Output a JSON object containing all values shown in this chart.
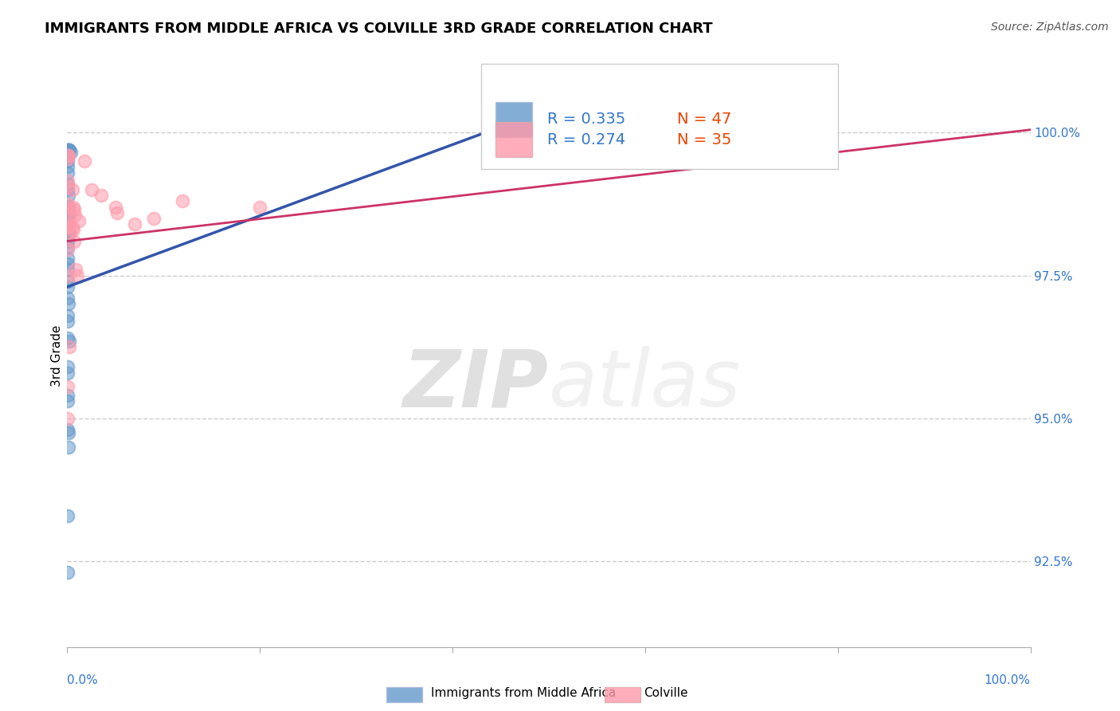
{
  "title": "IMMIGRANTS FROM MIDDLE AFRICA VS COLVILLE 3RD GRADE CORRELATION CHART",
  "source": "Source: ZipAtlas.com",
  "ylabel": "3rd Grade",
  "ylabel_right_labels": [
    "100.0%",
    "97.5%",
    "95.0%",
    "92.5%"
  ],
  "ylabel_right_values": [
    100.0,
    97.5,
    95.0,
    92.5
  ],
  "xlim": [
    0.0,
    100.0
  ],
  "ylim": [
    91.0,
    101.2
  ],
  "legend_blue_R": "R = 0.335",
  "legend_blue_N": "N = 47",
  "legend_pink_R": "R = 0.274",
  "legend_pink_N": "N = 35",
  "watermark_zip": "ZIP",
  "watermark_atlas": "atlas",
  "blue_scatter": [
    [
      0.05,
      99.7
    ],
    [
      0.05,
      99.5
    ],
    [
      0.05,
      99.4
    ],
    [
      0.05,
      99.3
    ],
    [
      0.12,
      99.7
    ],
    [
      0.12,
      99.65
    ],
    [
      0.17,
      99.7
    ],
    [
      0.22,
      99.7
    ],
    [
      0.05,
      99.1
    ],
    [
      0.07,
      99.0
    ],
    [
      0.1,
      98.9
    ],
    [
      0.05,
      98.7
    ],
    [
      0.05,
      98.6
    ],
    [
      0.05,
      98.55
    ],
    [
      0.05,
      98.5
    ],
    [
      0.07,
      98.7
    ],
    [
      0.07,
      98.65
    ],
    [
      0.08,
      98.6
    ],
    [
      0.1,
      98.7
    ],
    [
      0.1,
      98.6
    ],
    [
      0.05,
      98.3
    ],
    [
      0.05,
      98.2
    ],
    [
      0.05,
      98.1
    ],
    [
      0.05,
      98.0
    ],
    [
      0.07,
      98.25
    ],
    [
      0.08,
      98.15
    ],
    [
      0.05,
      97.8
    ],
    [
      0.05,
      97.7
    ],
    [
      0.05,
      97.6
    ],
    [
      0.05,
      97.4
    ],
    [
      0.05,
      97.3
    ],
    [
      0.05,
      97.1
    ],
    [
      0.1,
      97.0
    ],
    [
      0.05,
      96.8
    ],
    [
      0.05,
      96.7
    ],
    [
      0.05,
      96.4
    ],
    [
      0.2,
      96.35
    ],
    [
      0.05,
      95.9
    ],
    [
      0.05,
      95.8
    ],
    [
      0.05,
      95.4
    ],
    [
      0.05,
      95.3
    ],
    [
      0.05,
      94.8
    ],
    [
      0.1,
      94.75
    ],
    [
      0.1,
      94.5
    ],
    [
      0.05,
      93.3
    ],
    [
      0.4,
      99.65
    ],
    [
      0.05,
      92.3
    ]
  ],
  "pink_scatter": [
    [
      0.05,
      99.6
    ],
    [
      0.05,
      99.55
    ],
    [
      0.1,
      99.6
    ],
    [
      0.05,
      99.15
    ],
    [
      0.07,
      99.05
    ],
    [
      0.05,
      98.75
    ],
    [
      0.05,
      98.7
    ],
    [
      0.12,
      98.5
    ],
    [
      0.18,
      98.4
    ],
    [
      0.05,
      98.35
    ],
    [
      0.3,
      98.25
    ],
    [
      0.05,
      97.95
    ],
    [
      0.05,
      97.5
    ],
    [
      0.55,
      99.0
    ],
    [
      0.65,
      98.7
    ],
    [
      0.7,
      98.65
    ],
    [
      0.8,
      98.55
    ],
    [
      1.2,
      98.45
    ],
    [
      0.55,
      98.35
    ],
    [
      0.6,
      98.3
    ],
    [
      0.75,
      98.1
    ],
    [
      0.9,
      97.6
    ],
    [
      1.05,
      97.5
    ],
    [
      1.8,
      99.5
    ],
    [
      2.5,
      99.0
    ],
    [
      3.5,
      98.9
    ],
    [
      5.0,
      98.7
    ],
    [
      5.2,
      98.6
    ],
    [
      7.0,
      98.4
    ],
    [
      9.0,
      98.5
    ],
    [
      12.0,
      98.8
    ],
    [
      20.0,
      98.7
    ],
    [
      0.2,
      96.25
    ],
    [
      0.05,
      95.55
    ],
    [
      0.05,
      95.0
    ]
  ],
  "blue_line_x": [
    0.0,
    45.0
  ],
  "blue_line_y": [
    97.3,
    100.1
  ],
  "pink_line_x": [
    0.0,
    100.0
  ],
  "pink_line_y": [
    98.1,
    100.05
  ],
  "blue_color": "#6699cc",
  "pink_color": "#ff99aa",
  "blue_line_color": "#3355aa",
  "pink_line_color": "#cc3366",
  "grid_color": "#cccccc",
  "background_color": "#ffffff",
  "title_fontsize": 13,
  "axis_label_fontsize": 11,
  "tick_fontsize": 11,
  "legend_fontsize": 14,
  "watermark_color_zip": "#cccccc",
  "watermark_color_atlas": "#cccccc",
  "watermark_alpha": 0.6
}
